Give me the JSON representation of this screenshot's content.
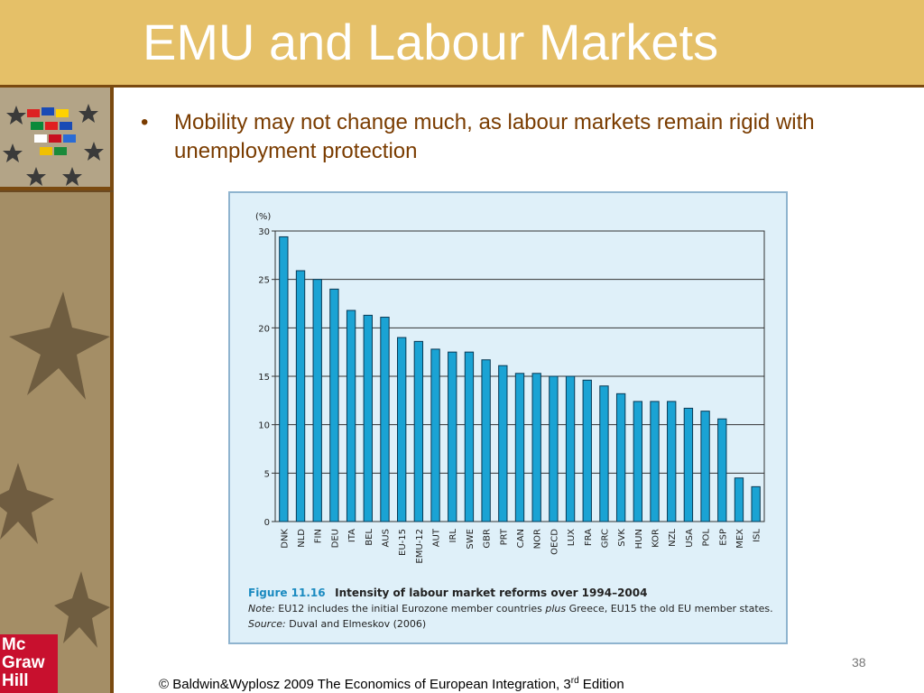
{
  "slide": {
    "title": "EMU and Labour Markets",
    "bullet_marker": "•",
    "bullet_text": "Mobility may not change much, as labour markets remain rigid with unemployment protection",
    "page_number": "38",
    "footer_prefix": "© Baldwin&Wyplosz 2009 The Economics of European Integration, 3",
    "footer_superscript": "rd",
    "footer_suffix": " Edition",
    "logo_lines": [
      "Mc",
      "Graw",
      "Hill"
    ]
  },
  "figure": {
    "number": "Figure 11.16",
    "title": "Intensity of labour market reforms over 1994–2004",
    "note_label": "Note:",
    "note_text": " EU12 includes the initial Eurozone member countries ",
    "note_plus": "plus",
    "note_text2": " Greece, EU15 the old EU member states.",
    "source_label": "Source:",
    "source_text": " Duval and Elmeskov (2006)"
  },
  "colors": {
    "title_bar": "#e5c068",
    "bar_fill": "#1aa3d4",
    "figure_bg": "#dff0f9",
    "bullet_text": "#7a3c00"
  },
  "chart_data": {
    "type": "bar",
    "ylabel": "(%)",
    "ylim": [
      0,
      30
    ],
    "yticks": [
      0,
      5,
      10,
      15,
      20,
      25,
      30
    ],
    "grid": true,
    "categories": [
      "DNK",
      "NLD",
      "FIN",
      "DEU",
      "ITA",
      "BEL",
      "AUS",
      "EU-15",
      "EMU-12",
      "AUT",
      "IRL",
      "SWE",
      "GBR",
      "PRT",
      "CAN",
      "NOR",
      "OECD",
      "LUX",
      "FRA",
      "GRC",
      "SVK",
      "HUN",
      "KOR",
      "NZL",
      "USA",
      "POL",
      "ESP",
      "MEX",
      "ISL"
    ],
    "values": [
      29.4,
      25.9,
      25.0,
      24.0,
      21.8,
      21.3,
      21.1,
      19.0,
      18.6,
      17.8,
      17.5,
      17.5,
      16.7,
      16.1,
      15.3,
      15.3,
      15.0,
      15.0,
      14.6,
      14.0,
      13.2,
      12.4,
      12.4,
      12.4,
      11.7,
      11.4,
      10.6,
      4.5,
      3.6
    ]
  }
}
